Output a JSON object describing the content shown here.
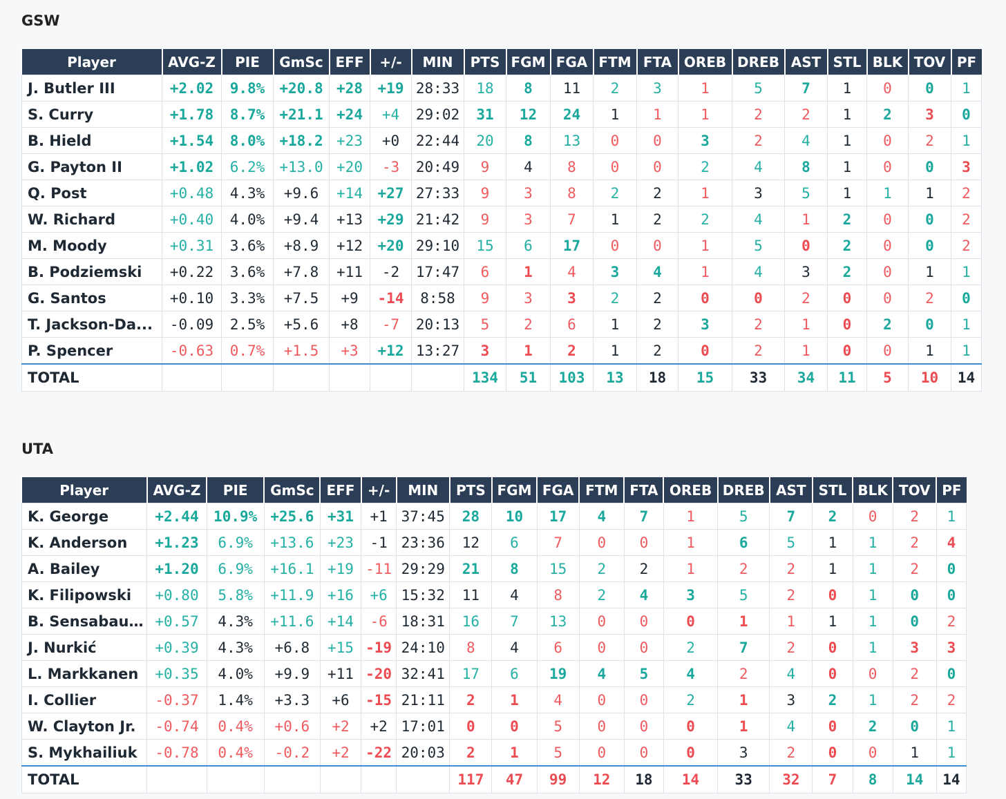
{
  "colors": {
    "header_bg": "#2c3e55",
    "positive": "#24b0a5",
    "negative": "#ef5a5f",
    "total_rule": "#3b8ed1"
  },
  "columns": [
    "Player",
    "AVG-Z",
    "PIE",
    "GmSc",
    "EFF",
    "+/-",
    "MIN",
    "PTS",
    "FGM",
    "FGA",
    "FTM",
    "FTA",
    "OREB",
    "DREB",
    "AST",
    "STL",
    "BLK",
    "TOV",
    "PF"
  ],
  "teams": [
    {
      "name": "GSW",
      "rows": [
        [
          "J. Butler III",
          "+2.02",
          "9.8%",
          "+20.8",
          "+28",
          "+19",
          "28:33",
          "18",
          "8",
          "11",
          "2",
          "3",
          "1",
          "5",
          "7",
          "1",
          "0",
          "0",
          "1"
        ],
        [
          "S. Curry",
          "+1.78",
          "8.7%",
          "+21.1",
          "+24",
          "+4",
          "29:02",
          "31",
          "12",
          "24",
          "1",
          "1",
          "1",
          "2",
          "2",
          "1",
          "2",
          "3",
          "0"
        ],
        [
          "B. Hield",
          "+1.54",
          "8.0%",
          "+18.2",
          "+23",
          "+0",
          "22:44",
          "20",
          "8",
          "13",
          "0",
          "0",
          "3",
          "2",
          "4",
          "1",
          "0",
          "2",
          "1"
        ],
        [
          "G. Payton II",
          "+1.02",
          "6.2%",
          "+13.0",
          "+20",
          "-3",
          "20:49",
          "9",
          "4",
          "8",
          "0",
          "0",
          "2",
          "4",
          "8",
          "1",
          "0",
          "0",
          "3"
        ],
        [
          "Q. Post",
          "+0.48",
          "4.3%",
          "+9.6",
          "+14",
          "+27",
          "27:33",
          "9",
          "3",
          "8",
          "2",
          "2",
          "1",
          "3",
          "5",
          "1",
          "1",
          "1",
          "2"
        ],
        [
          "W. Richard",
          "+0.40",
          "4.0%",
          "+9.4",
          "+13",
          "+29",
          "21:42",
          "9",
          "3",
          "7",
          "1",
          "2",
          "2",
          "4",
          "1",
          "2",
          "0",
          "0",
          "2"
        ],
        [
          "M. Moody",
          "+0.31",
          "3.6%",
          "+8.9",
          "+12",
          "+20",
          "29:10",
          "15",
          "6",
          "17",
          "0",
          "0",
          "1",
          "5",
          "0",
          "2",
          "0",
          "0",
          "2"
        ],
        [
          "B. Podziemski",
          "+0.22",
          "3.6%",
          "+7.8",
          "+11",
          "-2",
          "17:47",
          "6",
          "1",
          "4",
          "3",
          "4",
          "1",
          "4",
          "3",
          "2",
          "0",
          "1",
          "1"
        ],
        [
          "G. Santos",
          "+0.10",
          "3.3%",
          "+7.5",
          "+9",
          "-14",
          "8:58",
          "9",
          "3",
          "3",
          "2",
          "2",
          "0",
          "0",
          "2",
          "0",
          "0",
          "2",
          "0"
        ],
        [
          "T. Jackson-Da...",
          "-0.09",
          "2.5%",
          "+5.6",
          "+8",
          "-7",
          "20:13",
          "5",
          "2",
          "6",
          "1",
          "2",
          "3",
          "2",
          "1",
          "0",
          "2",
          "0",
          "1"
        ],
        [
          "P. Spencer",
          "-0.63",
          "0.7%",
          "+1.5",
          "+3",
          "+12",
          "13:27",
          "3",
          "1",
          "2",
          "1",
          "2",
          "0",
          "2",
          "1",
          "0",
          "0",
          "1",
          "1"
        ]
      ],
      "styles": [
        [
          "bp",
          "bp",
          "bp",
          "bp",
          "bp",
          "nd",
          "np",
          "bp",
          "nd",
          "np",
          "np",
          "nr",
          "np",
          "bp",
          "nd",
          "nr",
          "bp",
          "np"
        ],
        [
          "bp",
          "bp",
          "bp",
          "bp",
          "np",
          "nd",
          "bp",
          "bp",
          "bp",
          "nd",
          "nr",
          "nr",
          "nr",
          "nr",
          "nd",
          "bp",
          "br",
          "bp"
        ],
        [
          "bp",
          "bp",
          "bp",
          "np",
          "nd",
          "nd",
          "np",
          "bp",
          "np",
          "nr",
          "nr",
          "bp",
          "nr",
          "np",
          "nd",
          "nr",
          "nr",
          "np"
        ],
        [
          "bp",
          "np",
          "np",
          "np",
          "nr",
          "nd",
          "nr",
          "nd",
          "nr",
          "nr",
          "nr",
          "np",
          "np",
          "bp",
          "nd",
          "nr",
          "bp",
          "br"
        ],
        [
          "np",
          "nd",
          "nd",
          "np",
          "bp",
          "nd",
          "nr",
          "nr",
          "nr",
          "np",
          "nd",
          "nr",
          "nd",
          "np",
          "nd",
          "np",
          "nd",
          "nr"
        ],
        [
          "np",
          "nd",
          "nd",
          "nd",
          "bp",
          "nd",
          "nr",
          "nr",
          "nr",
          "nd",
          "nd",
          "np",
          "np",
          "nr",
          "bp",
          "nr",
          "bp",
          "nr"
        ],
        [
          "np",
          "nd",
          "nd",
          "nd",
          "bp",
          "nd",
          "np",
          "np",
          "bp",
          "nr",
          "nr",
          "nr",
          "np",
          "br",
          "bp",
          "nr",
          "bp",
          "nr"
        ],
        [
          "nd",
          "nd",
          "nd",
          "nd",
          "nd",
          "nd",
          "nr",
          "br",
          "nr",
          "bp",
          "bp",
          "nr",
          "np",
          "nd",
          "bp",
          "nr",
          "nd",
          "np"
        ],
        [
          "nd",
          "nd",
          "nd",
          "nd",
          "br",
          "nd",
          "nr",
          "nr",
          "br",
          "np",
          "nd",
          "br",
          "br",
          "nr",
          "br",
          "nr",
          "nr",
          "bp"
        ],
        [
          "nd",
          "nd",
          "nd",
          "nd",
          "nr",
          "nd",
          "nr",
          "nr",
          "nr",
          "nd",
          "nd",
          "bp",
          "nr",
          "nr",
          "br",
          "bp",
          "bp",
          "np"
        ],
        [
          "nr",
          "nr",
          "nr",
          "nr",
          "bp",
          "nd",
          "br",
          "br",
          "br",
          "nd",
          "nd",
          "br",
          "nr",
          "nr",
          "br",
          "nr",
          "nd",
          "np"
        ]
      ],
      "total": {
        "label": "TOTAL",
        "values": [
          "134",
          "51",
          "103",
          "13",
          "18",
          "15",
          "33",
          "34",
          "11",
          "5",
          "10",
          "14"
        ]
      },
      "total_styles": [
        "bp",
        "bp",
        "bp",
        "bp",
        "bd",
        "bp",
        "bd",
        "bp",
        "bp",
        "br",
        "br",
        "bd"
      ]
    },
    {
      "name": "UTA",
      "rows": [
        [
          "K. George",
          "+2.44",
          "10.9%",
          "+25.6",
          "+31",
          "+1",
          "37:45",
          "28",
          "10",
          "17",
          "4",
          "7",
          "1",
          "5",
          "7",
          "2",
          "0",
          "2",
          "1"
        ],
        [
          "K. Anderson",
          "+1.23",
          "6.9%",
          "+13.6",
          "+23",
          "-1",
          "23:36",
          "12",
          "6",
          "7",
          "0",
          "0",
          "1",
          "6",
          "5",
          "1",
          "1",
          "2",
          "4"
        ],
        [
          "A. Bailey",
          "+1.20",
          "6.9%",
          "+16.1",
          "+19",
          "-11",
          "29:29",
          "21",
          "8",
          "15",
          "2",
          "2",
          "1",
          "2",
          "2",
          "1",
          "1",
          "2",
          "0"
        ],
        [
          "K. Filipowski",
          "+0.80",
          "5.8%",
          "+11.9",
          "+16",
          "+6",
          "15:32",
          "11",
          "4",
          "8",
          "2",
          "4",
          "3",
          "5",
          "2",
          "0",
          "1",
          "0",
          "0"
        ],
        [
          "B. Sensabaugh",
          "+0.57",
          "4.3%",
          "+11.6",
          "+14",
          "-6",
          "18:31",
          "16",
          "7",
          "13",
          "0",
          "0",
          "0",
          "1",
          "1",
          "1",
          "1",
          "0",
          "2"
        ],
        [
          "J. Nurkić",
          "+0.39",
          "4.3%",
          "+6.8",
          "+15",
          "-19",
          "24:10",
          "8",
          "4",
          "6",
          "0",
          "0",
          "2",
          "7",
          "2",
          "0",
          "1",
          "3",
          "3"
        ],
        [
          "L. Markkanen",
          "+0.35",
          "4.0%",
          "+9.9",
          "+11",
          "-20",
          "32:41",
          "17",
          "6",
          "19",
          "4",
          "5",
          "4",
          "2",
          "4",
          "0",
          "0",
          "2",
          "0"
        ],
        [
          "I. Collier",
          "-0.37",
          "1.4%",
          "+3.3",
          "+6",
          "-15",
          "21:11",
          "2",
          "1",
          "4",
          "0",
          "0",
          "2",
          "1",
          "3",
          "2",
          "1",
          "2",
          "2"
        ],
        [
          "W. Clayton Jr.",
          "-0.74",
          "0.4%",
          "+0.6",
          "+2",
          "+2",
          "17:01",
          "0",
          "0",
          "5",
          "0",
          "0",
          "0",
          "1",
          "4",
          "0",
          "2",
          "0",
          "1"
        ],
        [
          "S. Mykhailiuk",
          "-0.78",
          "0.4%",
          "-0.2",
          "+2",
          "-22",
          "20:03",
          "2",
          "1",
          "5",
          "0",
          "0",
          "0",
          "3",
          "2",
          "0",
          "0",
          "1",
          "1"
        ]
      ],
      "styles": [
        [
          "bp",
          "bp",
          "bp",
          "bp",
          "nd",
          "nd",
          "bp",
          "bp",
          "bp",
          "bp",
          "bp",
          "nr",
          "np",
          "bp",
          "bp",
          "nr",
          "nr",
          "np"
        ],
        [
          "bp",
          "np",
          "np",
          "np",
          "nd",
          "nd",
          "nd",
          "np",
          "nr",
          "nr",
          "nr",
          "nr",
          "bp",
          "np",
          "nd",
          "np",
          "nr",
          "br"
        ],
        [
          "bp",
          "np",
          "np",
          "np",
          "nr",
          "nd",
          "bp",
          "bp",
          "np",
          "np",
          "nd",
          "nr",
          "nr",
          "nr",
          "nd",
          "np",
          "nr",
          "bp"
        ],
        [
          "np",
          "np",
          "np",
          "np",
          "np",
          "nd",
          "nd",
          "nd",
          "nr",
          "np",
          "bp",
          "bp",
          "np",
          "nr",
          "br",
          "np",
          "bp",
          "bp"
        ],
        [
          "np",
          "nd",
          "np",
          "np",
          "nr",
          "nd",
          "np",
          "np",
          "np",
          "nr",
          "nr",
          "br",
          "br",
          "nr",
          "nd",
          "np",
          "bp",
          "nr"
        ],
        [
          "np",
          "nd",
          "nd",
          "np",
          "br",
          "nd",
          "nr",
          "nd",
          "nr",
          "nr",
          "nr",
          "np",
          "bp",
          "nr",
          "br",
          "np",
          "br",
          "br"
        ],
        [
          "np",
          "nd",
          "nd",
          "nd",
          "br",
          "nd",
          "np",
          "np",
          "bp",
          "bp",
          "bp",
          "bp",
          "nr",
          "np",
          "br",
          "nr",
          "nr",
          "bp"
        ],
        [
          "nr",
          "nd",
          "nd",
          "nd",
          "br",
          "nd",
          "br",
          "br",
          "nr",
          "nr",
          "nr",
          "np",
          "br",
          "nd",
          "bp",
          "np",
          "nr",
          "nr"
        ],
        [
          "nr",
          "nr",
          "nr",
          "nr",
          "nd",
          "nd",
          "br",
          "br",
          "nr",
          "nr",
          "nr",
          "br",
          "br",
          "np",
          "br",
          "bp",
          "bp",
          "np"
        ],
        [
          "nr",
          "nr",
          "nr",
          "nr",
          "br",
          "nd",
          "br",
          "br",
          "nr",
          "nr",
          "nr",
          "br",
          "nd",
          "nr",
          "br",
          "nr",
          "nd",
          "np"
        ]
      ],
      "total": {
        "label": "TOTAL",
        "values": [
          "117",
          "47",
          "99",
          "12",
          "18",
          "14",
          "33",
          "32",
          "7",
          "8",
          "14",
          "14"
        ]
      },
      "total_styles": [
        "br",
        "br",
        "br",
        "br",
        "bd",
        "br",
        "bd",
        "br",
        "br",
        "bp",
        "bp",
        "bd"
      ]
    }
  ]
}
